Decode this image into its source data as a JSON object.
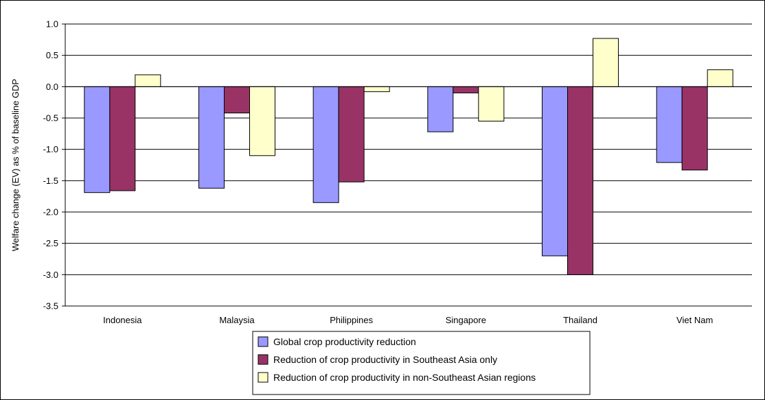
{
  "chart_data": {
    "type": "bar",
    "categories": [
      "Indonesia",
      "Malaysia",
      "Philippines",
      "Singapore",
      "Thailand",
      "Viet Nam"
    ],
    "series": [
      {
        "name": "Global crop productivity reduction",
        "color": "#9999ff",
        "values": [
          -1.69,
          -1.62,
          -1.85,
          -0.72,
          -2.7,
          -1.21
        ]
      },
      {
        "name": "Reduction of crop productivity in Southeast Asia only",
        "color": "#993366",
        "values": [
          -1.66,
          -0.42,
          -1.52,
          -0.1,
          -3.0,
          -1.33
        ]
      },
      {
        "name": "Reduction of crop productivity in non-Southeast Asian regions",
        "color": "#ffffcc",
        "values": [
          0.19,
          -1.1,
          -0.08,
          -0.55,
          0.77,
          0.27
        ]
      }
    ],
    "ylabel": "Welfare change (EV) as % of baseline GDP",
    "ylim": [
      -3.5,
      1.0
    ],
    "ytick_step": 0.5,
    "ytick_labels": [
      "1.0",
      "0.5",
      "0.0",
      "-0.5",
      "-1.0",
      "-1.5",
      "-2.0",
      "-2.5",
      "-3.0",
      "-3.5"
    ],
    "grid": true,
    "legend_position": "bottom"
  }
}
